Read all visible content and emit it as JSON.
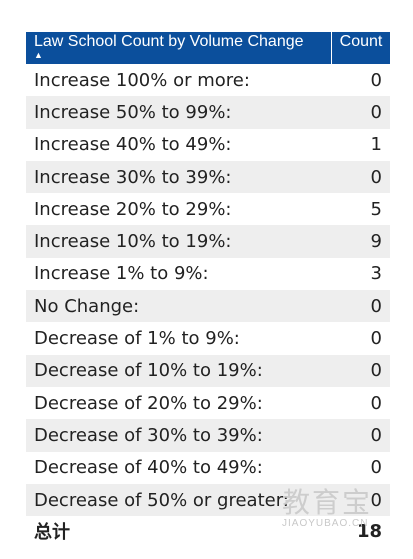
{
  "table": {
    "header": {
      "name": "Law School Count by Volume Change",
      "count": "Count",
      "sort_icon": "sort-up-arrow"
    },
    "rows": [
      {
        "label": "Increase 100% or more:",
        "value": "0"
      },
      {
        "label": "Increase 50% to 99%:",
        "value": "0"
      },
      {
        "label": "Increase 40% to 49%:",
        "value": "1"
      },
      {
        "label": "Increase 30% to 39%:",
        "value": "0"
      },
      {
        "label": "Increase 20% to 29%:",
        "value": "5"
      },
      {
        "label": "Increase 10% to 19%:",
        "value": "9"
      },
      {
        "label": "Increase 1% to 9%:",
        "value": "3"
      },
      {
        "label": "No Change:",
        "value": "0"
      },
      {
        "label": "Decrease of 1% to 9%:",
        "value": "0"
      },
      {
        "label": "Decrease of 10% to 19%:",
        "value": "0"
      },
      {
        "label": "Decrease of 20% to 29%:",
        "value": "0"
      },
      {
        "label": "Decrease of 30% to 39%:",
        "value": "0"
      },
      {
        "label": "Decrease of 40% to 49%:",
        "value": "0"
      },
      {
        "label": "Decrease of 50% or greater:",
        "value": "0"
      }
    ],
    "total": {
      "label": "总计",
      "value": "18"
    }
  },
  "watermark": {
    "text_cn": "教育宝",
    "text_en": "JIAOYUBAO.CN"
  },
  "colors": {
    "header_bg": "#0b4f9c",
    "row_alt": "#eeeeee"
  }
}
